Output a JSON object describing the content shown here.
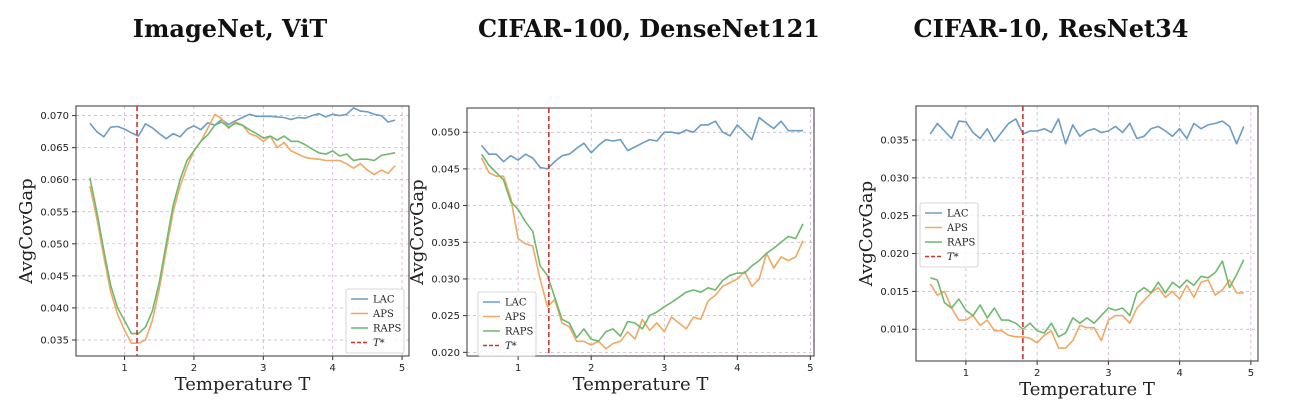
{
  "chart_data": [
    {
      "type": "line",
      "title": "ImageNet, ViT",
      "xlabel": "Temperature T",
      "ylabel": "AvgCovGap",
      "xlim": [
        0.3,
        5.1
      ],
      "ylim": [
        0.0325,
        0.0715
      ],
      "xticks": [
        1,
        2,
        3,
        4,
        5
      ],
      "yticks": [
        0.035,
        0.04,
        0.045,
        0.05,
        0.055,
        0.06,
        0.065,
        0.07
      ],
      "ytick_labels": [
        "0.035",
        "0.040",
        "0.045",
        "0.050",
        "0.055",
        "0.060",
        "0.065",
        "0.070"
      ],
      "grid": true,
      "legend_position": "lower-right",
      "tstar": 1.18,
      "series": [
        {
          "name": "LAC",
          "color": "#6b9dc4",
          "x": [
            0.5,
            0.6,
            0.7,
            0.8,
            0.9,
            1.0,
            1.1,
            1.2,
            1.3,
            1.4,
            1.5,
            1.6,
            1.7,
            1.8,
            1.9,
            2.0,
            2.1,
            2.2,
            2.3,
            2.4,
            2.5,
            2.6,
            2.7,
            2.8,
            2.9,
            3.0,
            3.1,
            3.2,
            3.3,
            3.4,
            3.5,
            3.6,
            3.7,
            3.8,
            3.9,
            4.0,
            4.1,
            4.2,
            4.3,
            4.4,
            4.5,
            4.6,
            4.7,
            4.8,
            4.9
          ],
          "values": [
            0.0688,
            0.0675,
            0.0667,
            0.0682,
            0.0683,
            0.0679,
            0.0673,
            0.0668,
            0.0687,
            0.0681,
            0.0672,
            0.0664,
            0.0672,
            0.0667,
            0.0679,
            0.0684,
            0.0678,
            0.0689,
            0.0685,
            0.0694,
            0.0686,
            0.0692,
            0.0697,
            0.0702,
            0.0699,
            0.0699,
            0.0699,
            0.0698,
            0.0697,
            0.0694,
            0.0697,
            0.0696,
            0.07,
            0.0703,
            0.0698,
            0.0702,
            0.07,
            0.0702,
            0.0712,
            0.0707,
            0.0706,
            0.0702,
            0.07,
            0.069,
            0.0693
          ]
        },
        {
          "name": "APS",
          "color": "#f0a865",
          "x": [
            0.5,
            0.6,
            0.7,
            0.8,
            0.9,
            1.0,
            1.1,
            1.2,
            1.3,
            1.4,
            1.5,
            1.6,
            1.7,
            1.8,
            1.9,
            2.0,
            2.1,
            2.2,
            2.3,
            2.4,
            2.5,
            2.6,
            2.7,
            2.8,
            2.9,
            3.0,
            3.1,
            3.2,
            3.3,
            3.4,
            3.5,
            3.6,
            3.7,
            3.8,
            3.9,
            4.0,
            4.1,
            4.2,
            4.3,
            4.4,
            4.5,
            4.6,
            4.7,
            4.8,
            4.9
          ],
          "values": [
            0.059,
            0.054,
            0.048,
            0.0425,
            0.039,
            0.0365,
            0.0345,
            0.0345,
            0.035,
            0.038,
            0.043,
            0.049,
            0.055,
            0.059,
            0.062,
            0.0645,
            0.066,
            0.068,
            0.0702,
            0.0695,
            0.068,
            0.069,
            0.0685,
            0.0672,
            0.0668,
            0.066,
            0.0668,
            0.065,
            0.0658,
            0.0645,
            0.064,
            0.0635,
            0.0633,
            0.0632,
            0.063,
            0.063,
            0.063,
            0.0625,
            0.0618,
            0.0625,
            0.0615,
            0.0608,
            0.0615,
            0.061,
            0.0622
          ]
        },
        {
          "name": "RAPS",
          "color": "#6fb96f",
          "x": [
            0.5,
            0.6,
            0.7,
            0.8,
            0.9,
            1.0,
            1.1,
            1.2,
            1.3,
            1.4,
            1.5,
            1.6,
            1.7,
            1.8,
            1.9,
            2.0,
            2.1,
            2.2,
            2.3,
            2.4,
            2.5,
            2.6,
            2.7,
            2.8,
            2.9,
            3.0,
            3.1,
            3.2,
            3.3,
            3.4,
            3.5,
            3.6,
            3.7,
            3.8,
            3.9,
            4.0,
            4.1,
            4.2,
            4.3,
            4.4,
            4.5,
            4.6,
            4.7,
            4.8,
            4.9
          ],
          "values": [
            0.0603,
            0.055,
            0.049,
            0.0435,
            0.04,
            0.038,
            0.036,
            0.036,
            0.037,
            0.0395,
            0.044,
            0.05,
            0.056,
            0.06,
            0.063,
            0.0645,
            0.066,
            0.067,
            0.0685,
            0.069,
            0.0682,
            0.0688,
            0.0685,
            0.0678,
            0.0672,
            0.0665,
            0.0668,
            0.0662,
            0.0668,
            0.066,
            0.066,
            0.0655,
            0.0648,
            0.0642,
            0.064,
            0.0645,
            0.0637,
            0.064,
            0.063,
            0.0632,
            0.0632,
            0.063,
            0.0638,
            0.064,
            0.0642
          ]
        }
      ],
      "legend": [
        "LAC",
        "APS",
        "RAPS",
        "T*"
      ]
    },
    {
      "type": "line",
      "title": "CIFAR-100, DenseNet121",
      "xlabel": "Temperature T",
      "ylabel": "AvgCovGap",
      "xlim": [
        0.3,
        5.05
      ],
      "ylim": [
        0.0195,
        0.0533
      ],
      "xticks": [
        1,
        2,
        3,
        4,
        5
      ],
      "yticks": [
        0.02,
        0.025,
        0.03,
        0.035,
        0.04,
        0.045,
        0.05
      ],
      "ytick_labels": [
        "0.020",
        "0.025",
        "0.030",
        "0.035",
        "0.040",
        "0.045",
        "0.050"
      ],
      "grid": true,
      "legend_position": "lower-left",
      "tstar": 1.42,
      "series": [
        {
          "name": "LAC",
          "color": "#6b9dc4",
          "x": [
            0.5,
            0.6,
            0.7,
            0.8,
            0.9,
            1.0,
            1.1,
            1.2,
            1.3,
            1.4,
            1.5,
            1.6,
            1.7,
            1.8,
            1.9,
            2.0,
            2.1,
            2.2,
            2.3,
            2.4,
            2.5,
            2.6,
            2.7,
            2.8,
            2.9,
            3.0,
            3.1,
            3.2,
            3.3,
            3.4,
            3.5,
            3.6,
            3.7,
            3.8,
            3.9,
            4.0,
            4.1,
            4.2,
            4.3,
            4.4,
            4.5,
            4.6,
            4.7,
            4.8,
            4.9
          ],
          "values": [
            0.0482,
            0.047,
            0.047,
            0.046,
            0.0468,
            0.0462,
            0.047,
            0.0465,
            0.0452,
            0.045,
            0.046,
            0.0468,
            0.047,
            0.0478,
            0.0485,
            0.0472,
            0.0482,
            0.049,
            0.0488,
            0.049,
            0.0475,
            0.048,
            0.0485,
            0.049,
            0.0488,
            0.05,
            0.05,
            0.0498,
            0.0503,
            0.05,
            0.051,
            0.051,
            0.0515,
            0.05,
            0.0495,
            0.051,
            0.05,
            0.049,
            0.052,
            0.0512,
            0.0505,
            0.0515,
            0.0502,
            0.0502,
            0.0502
          ]
        },
        {
          "name": "APS",
          "color": "#f0a865",
          "x": [
            0.5,
            0.6,
            0.7,
            0.8,
            0.9,
            1.0,
            1.1,
            1.2,
            1.3,
            1.4,
            1.5,
            1.6,
            1.7,
            1.8,
            1.9,
            2.0,
            2.1,
            2.2,
            2.3,
            2.4,
            2.5,
            2.6,
            2.7,
            2.8,
            2.9,
            3.0,
            3.1,
            3.2,
            3.3,
            3.4,
            3.5,
            3.6,
            3.7,
            3.8,
            3.9,
            4.0,
            4.1,
            4.2,
            4.3,
            4.4,
            4.5,
            4.6,
            4.7,
            4.8,
            4.9
          ],
          "values": [
            0.0465,
            0.0445,
            0.044,
            0.044,
            0.041,
            0.0355,
            0.0348,
            0.0345,
            0.03,
            0.0262,
            0.0272,
            0.024,
            0.0235,
            0.0215,
            0.0215,
            0.021,
            0.0215,
            0.0205,
            0.0212,
            0.0215,
            0.0228,
            0.0218,
            0.0245,
            0.023,
            0.024,
            0.0228,
            0.0248,
            0.024,
            0.0232,
            0.0248,
            0.0245,
            0.027,
            0.0278,
            0.029,
            0.0295,
            0.03,
            0.031,
            0.029,
            0.03,
            0.0335,
            0.0315,
            0.033,
            0.0325,
            0.033,
            0.0352
          ]
        },
        {
          "name": "RAPS",
          "color": "#6fb96f",
          "x": [
            0.5,
            0.6,
            0.7,
            0.8,
            0.9,
            1.0,
            1.1,
            1.2,
            1.3,
            1.4,
            1.5,
            1.6,
            1.7,
            1.8,
            1.9,
            2.0,
            2.1,
            2.2,
            2.3,
            2.4,
            2.5,
            2.6,
            2.7,
            2.8,
            2.9,
            3.0,
            3.1,
            3.2,
            3.3,
            3.4,
            3.5,
            3.6,
            3.7,
            3.8,
            3.9,
            4.0,
            4.1,
            4.2,
            4.3,
            4.4,
            4.5,
            4.6,
            4.7,
            4.8,
            4.9
          ],
          "values": [
            0.047,
            0.0455,
            0.0445,
            0.0435,
            0.0405,
            0.0395,
            0.0378,
            0.0365,
            0.0318,
            0.0305,
            0.0275,
            0.0245,
            0.024,
            0.022,
            0.0232,
            0.0218,
            0.0215,
            0.0228,
            0.0232,
            0.0222,
            0.0242,
            0.024,
            0.0232,
            0.025,
            0.0255,
            0.0262,
            0.0268,
            0.0275,
            0.0282,
            0.0285,
            0.0282,
            0.0288,
            0.0285,
            0.0298,
            0.0305,
            0.0308,
            0.0308,
            0.0318,
            0.0325,
            0.0335,
            0.0342,
            0.035,
            0.0358,
            0.0355,
            0.0375
          ]
        }
      ],
      "legend": [
        "LAC",
        "APS",
        "RAPS",
        "T*"
      ]
    },
    {
      "type": "line",
      "title": "CIFAR-10, ResNet34",
      "xlabel": "Temperature T",
      "ylabel": "AvgCovGap",
      "xlim": [
        0.3,
        5.1
      ],
      "ylim": [
        0.0058,
        0.0395
      ],
      "xticks": [
        1,
        2,
        3,
        4,
        5
      ],
      "yticks": [
        0.01,
        0.015,
        0.02,
        0.025,
        0.03,
        0.035
      ],
      "ytick_labels": [
        "0.010",
        "0.015",
        "0.020",
        "0.025",
        "0.030",
        "0.035"
      ],
      "grid": true,
      "legend_position": "center-left",
      "tstar": 1.8,
      "series": [
        {
          "name": "LAC",
          "color": "#6b9dc4",
          "x": [
            0.5,
            0.6,
            0.7,
            0.8,
            0.9,
            1.0,
            1.1,
            1.2,
            1.3,
            1.4,
            1.5,
            1.6,
            1.7,
            1.8,
            1.9,
            2.0,
            2.1,
            2.2,
            2.3,
            2.4,
            2.5,
            2.6,
            2.7,
            2.8,
            2.9,
            3.0,
            3.1,
            3.2,
            3.3,
            3.4,
            3.5,
            3.6,
            3.7,
            3.8,
            3.9,
            4.0,
            4.1,
            4.2,
            4.3,
            4.4,
            4.5,
            4.6,
            4.7,
            4.8,
            4.9
          ],
          "values": [
            0.0358,
            0.0372,
            0.0362,
            0.0352,
            0.0375,
            0.0374,
            0.036,
            0.0352,
            0.0365,
            0.0348,
            0.036,
            0.0372,
            0.0378,
            0.0358,
            0.0362,
            0.0362,
            0.0365,
            0.036,
            0.0378,
            0.0345,
            0.037,
            0.0355,
            0.0362,
            0.0365,
            0.036,
            0.0362,
            0.0368,
            0.036,
            0.0372,
            0.0352,
            0.0355,
            0.0365,
            0.0368,
            0.0362,
            0.0355,
            0.0365,
            0.0352,
            0.0372,
            0.0365,
            0.037,
            0.0372,
            0.0375,
            0.0368,
            0.0345,
            0.0368
          ]
        },
        {
          "name": "APS",
          "color": "#f0a865",
          "x": [
            0.5,
            0.6,
            0.7,
            0.8,
            0.9,
            1.0,
            1.1,
            1.2,
            1.3,
            1.4,
            1.5,
            1.6,
            1.7,
            1.8,
            1.9,
            2.0,
            2.1,
            2.2,
            2.3,
            2.4,
            2.5,
            2.6,
            2.7,
            2.8,
            2.9,
            3.0,
            3.1,
            3.2,
            3.3,
            3.4,
            3.5,
            3.6,
            3.7,
            3.8,
            3.9,
            4.0,
            4.1,
            4.2,
            4.3,
            4.4,
            4.5,
            4.6,
            4.7,
            4.8,
            4.9
          ],
          "values": [
            0.016,
            0.0145,
            0.015,
            0.0128,
            0.0112,
            0.0112,
            0.0118,
            0.0105,
            0.0112,
            0.0098,
            0.0098,
            0.0092,
            0.009,
            0.009,
            0.0088,
            0.0082,
            0.0092,
            0.0098,
            0.0075,
            0.0075,
            0.0085,
            0.0105,
            0.0102,
            0.0102,
            0.0085,
            0.0112,
            0.0118,
            0.0118,
            0.0108,
            0.0128,
            0.0138,
            0.0148,
            0.0155,
            0.0142,
            0.015,
            0.014,
            0.0158,
            0.0142,
            0.0162,
            0.0165,
            0.0145,
            0.0152,
            0.0165,
            0.0148,
            0.0148
          ]
        },
        {
          "name": "RAPS",
          "color": "#6fb96f",
          "x": [
            0.5,
            0.6,
            0.7,
            0.8,
            0.9,
            1.0,
            1.1,
            1.2,
            1.3,
            1.4,
            1.5,
            1.6,
            1.7,
            1.8,
            1.9,
            2.0,
            2.1,
            2.2,
            2.3,
            2.4,
            2.5,
            2.6,
            2.7,
            2.8,
            2.9,
            3.0,
            3.1,
            3.2,
            3.3,
            3.4,
            3.5,
            3.6,
            3.7,
            3.8,
            3.9,
            4.0,
            4.1,
            4.2,
            4.3,
            4.4,
            4.5,
            4.6,
            4.7,
            4.8,
            4.9
          ],
          "values": [
            0.0168,
            0.0165,
            0.0135,
            0.0128,
            0.014,
            0.0125,
            0.0118,
            0.0132,
            0.0115,
            0.0128,
            0.0112,
            0.0112,
            0.0108,
            0.01,
            0.0108,
            0.0098,
            0.0095,
            0.0108,
            0.009,
            0.0095,
            0.0115,
            0.0108,
            0.0115,
            0.0108,
            0.0118,
            0.0128,
            0.0125,
            0.0128,
            0.0118,
            0.0148,
            0.0155,
            0.0148,
            0.0162,
            0.0148,
            0.0162,
            0.0155,
            0.0165,
            0.0158,
            0.017,
            0.0168,
            0.0175,
            0.019,
            0.0155,
            0.0172,
            0.0192
          ]
        }
      ],
      "legend": [
        "LAC",
        "APS",
        "RAPS",
        "T*"
      ]
    }
  ]
}
